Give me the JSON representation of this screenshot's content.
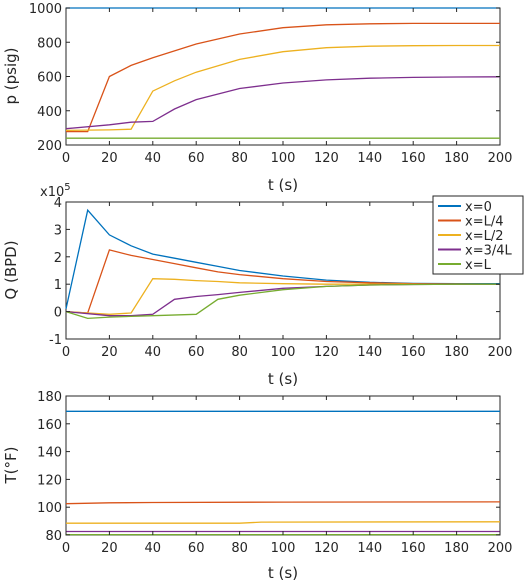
{
  "chart_data": [
    {
      "type": "line",
      "xlabel": "t (s)",
      "ylabel": "p (psig)",
      "xlim": [
        0,
        200
      ],
      "ylim": [
        200,
        1000
      ],
      "xticks": [
        "0",
        "20",
        "40",
        "60",
        "80",
        "100",
        "120",
        "140",
        "160",
        "180",
        "200"
      ],
      "yticks": [
        "200",
        "400",
        "600",
        "800",
        "1000"
      ],
      "grid": false,
      "series": [
        {
          "name": "x=0",
          "color": "#0072BD",
          "x": [
            0,
            200
          ],
          "y": [
            1000,
            1000
          ]
        },
        {
          "name": "x=L/4",
          "color": "#D95319",
          "x": [
            0,
            10,
            20,
            30,
            40,
            60,
            80,
            100,
            120,
            140,
            160,
            180,
            200
          ],
          "y": [
            278,
            278,
            600,
            665,
            710,
            790,
            848,
            885,
            902,
            908,
            910,
            910,
            910
          ]
        },
        {
          "name": "x=L/2",
          "color": "#EDB120",
          "x": [
            0,
            20,
            30,
            40,
            50,
            60,
            80,
            100,
            120,
            140,
            160,
            180,
            200
          ],
          "y": [
            285,
            288,
            292,
            515,
            575,
            625,
            700,
            745,
            768,
            777,
            780,
            781,
            781
          ]
        },
        {
          "name": "x=3/4L",
          "color": "#7E2F8E",
          "x": [
            0,
            20,
            30,
            40,
            50,
            60,
            80,
            100,
            120,
            140,
            160,
            180,
            200
          ],
          "y": [
            295,
            318,
            333,
            338,
            410,
            465,
            530,
            562,
            580,
            590,
            595,
            597,
            598
          ]
        },
        {
          "name": "x=L",
          "color": "#77AC30",
          "x": [
            0,
            200
          ],
          "y": [
            240,
            240
          ]
        }
      ]
    },
    {
      "type": "line",
      "xlabel": "t (s)",
      "ylabel": "Q (BPD)",
      "multiplier": "x10",
      "multiplier_exp": "5",
      "xlim": [
        0,
        200
      ],
      "ylim": [
        -1,
        4
      ],
      "xticks": [
        "0",
        "20",
        "40",
        "60",
        "80",
        "100",
        "120",
        "140",
        "160",
        "180",
        "200"
      ],
      "yticks": [
        "-1",
        "0",
        "1",
        "2",
        "3",
        "4"
      ],
      "grid": false,
      "legend_position": "right",
      "series": [
        {
          "name": "x=0",
          "color": "#0072BD",
          "x": [
            0,
            10,
            20,
            30,
            40,
            50,
            60,
            70,
            80,
            100,
            120,
            140,
            160,
            180,
            200
          ],
          "y": [
            0.1,
            3.7,
            2.8,
            2.4,
            2.1,
            1.95,
            1.8,
            1.65,
            1.5,
            1.3,
            1.15,
            1.07,
            1.03,
            1.02,
            1.02
          ]
        },
        {
          "name": "x=L/4",
          "color": "#D95319",
          "x": [
            0,
            10,
            20,
            30,
            40,
            50,
            60,
            70,
            80,
            100,
            120,
            140,
            160,
            180,
            200
          ],
          "y": [
            0,
            -0.05,
            2.25,
            2.05,
            1.9,
            1.75,
            1.6,
            1.45,
            1.35,
            1.2,
            1.1,
            1.05,
            1.02,
            1.01,
            1.0
          ]
        },
        {
          "name": "x=L/2",
          "color": "#EDB120",
          "x": [
            0,
            20,
            30,
            40,
            50,
            60,
            70,
            80,
            100,
            120,
            140,
            160,
            180,
            200
          ],
          "y": [
            0,
            -0.1,
            -0.05,
            1.2,
            1.18,
            1.13,
            1.1,
            1.05,
            1.02,
            1.0,
            1.0,
            1.0,
            1.0,
            1.0
          ]
        },
        {
          "name": "x=3/4L",
          "color": "#7E2F8E",
          "x": [
            0,
            20,
            30,
            40,
            50,
            60,
            70,
            80,
            100,
            120,
            140,
            160,
            180,
            200
          ],
          "y": [
            0,
            -0.15,
            -0.15,
            -0.1,
            0.45,
            0.55,
            0.62,
            0.7,
            0.85,
            0.92,
            0.97,
            0.99,
            1.0,
            1.0
          ]
        },
        {
          "name": "x=L",
          "color": "#77AC30",
          "x": [
            0,
            10,
            20,
            40,
            60,
            70,
            80,
            100,
            120,
            140,
            160,
            180,
            200
          ],
          "y": [
            0,
            -0.25,
            -0.2,
            -0.15,
            -0.1,
            0.45,
            0.6,
            0.8,
            0.92,
            0.97,
            0.99,
            1.0,
            1.0
          ]
        }
      ]
    },
    {
      "type": "line",
      "xlabel": "t (s)",
      "ylabel": "T(°F)",
      "xlim": [
        0,
        200
      ],
      "ylim": [
        80,
        180
      ],
      "xticks": [
        "0",
        "20",
        "40",
        "60",
        "80",
        "100",
        "120",
        "140",
        "160",
        "180",
        "200"
      ],
      "yticks": [
        "80",
        "100",
        "120",
        "140",
        "160",
        "180"
      ],
      "grid": false,
      "series": [
        {
          "name": "x=0",
          "color": "#0072BD",
          "x": [
            0,
            200
          ],
          "y": [
            169,
            169
          ]
        },
        {
          "name": "x=L/4",
          "color": "#D95319",
          "x": [
            0,
            20,
            40,
            100,
            200
          ],
          "y": [
            102.5,
            103.2,
            103.4,
            103.7,
            103.8
          ]
        },
        {
          "name": "x=L/2",
          "color": "#EDB120",
          "x": [
            0,
            80,
            90,
            200
          ],
          "y": [
            88.5,
            88.5,
            89.3,
            89.5
          ]
        },
        {
          "name": "x=3/4L",
          "color": "#7E2F8E",
          "x": [
            0,
            200
          ],
          "y": [
            82.5,
            82.5
          ]
        },
        {
          "name": "x=L",
          "color": "#77AC30",
          "x": [
            0,
            200
          ],
          "y": [
            80.3,
            80.3
          ]
        }
      ]
    }
  ]
}
